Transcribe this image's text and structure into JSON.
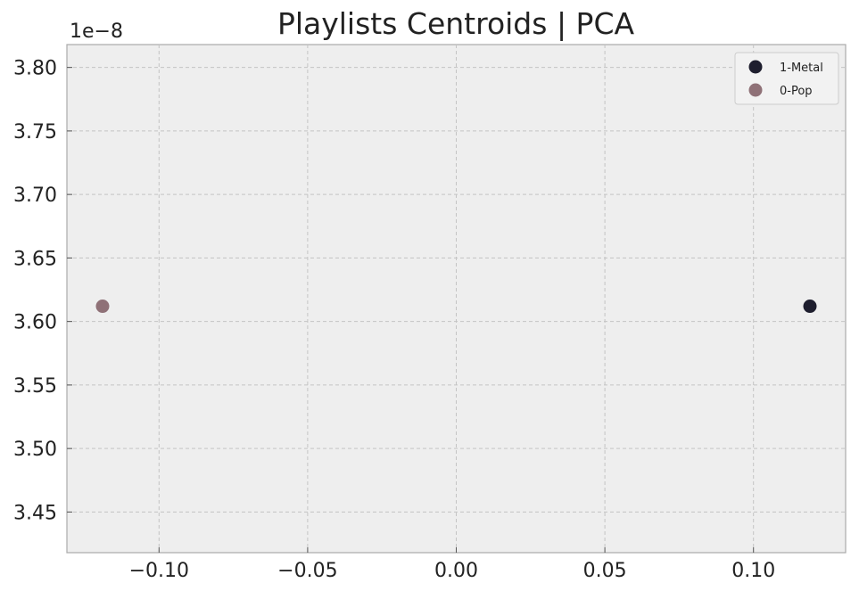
{
  "chart_data": {
    "type": "scatter",
    "title": "Playlists Centroids | PCA",
    "xlabel": "",
    "ylabel": "",
    "y_offset_label": "1e−8",
    "xlim": [
      -0.131,
      0.131
    ],
    "ylim": [
      3.418,
      3.818
    ],
    "x_ticks": [
      -0.1,
      -0.05,
      0.0,
      0.05,
      0.1
    ],
    "x_tick_labels": [
      "−0.10",
      "−0.05",
      "0.00",
      "0.05",
      "0.10"
    ],
    "y_ticks": [
      3.45,
      3.5,
      3.55,
      3.6,
      3.65,
      3.7,
      3.75,
      3.8
    ],
    "y_tick_labels": [
      "3.45",
      "3.50",
      "3.55",
      "3.60",
      "3.65",
      "3.70",
      "3.75",
      "3.80"
    ],
    "grid": true,
    "legend_position": "top-right",
    "series": [
      {
        "name": "1-Metal",
        "color": "#1e1e2e",
        "points": [
          {
            "x": 0.119,
            "y": 3.612
          }
        ]
      },
      {
        "name": "0-Pop",
        "color": "#8f7177",
        "points": [
          {
            "x": -0.119,
            "y": 3.612
          }
        ]
      }
    ]
  }
}
